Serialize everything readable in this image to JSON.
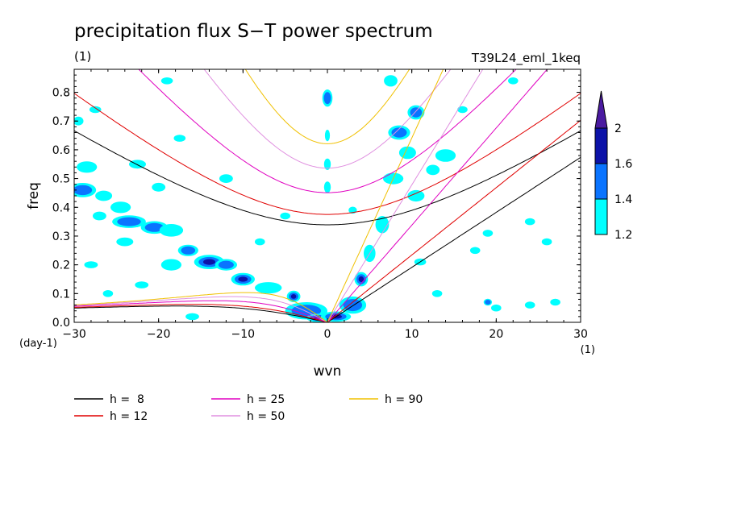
{
  "chart_data": {
    "type": "contour",
    "title": "precipitation flux S−T power spectrum",
    "subtitle_left": "(1)",
    "subtitle_right": "T39L24_eml_1keq",
    "xlabel": "wvn",
    "ylabel": "freq",
    "x_unit": "(1)",
    "y_unit": "(day-1)",
    "xlim": [
      -30,
      30
    ],
    "ylim": [
      0,
      0.88
    ],
    "x_ticks": [
      {
        "value": -30,
        "label": "−30"
      },
      {
        "value": -20,
        "label": "−20"
      },
      {
        "value": -10,
        "label": "−10"
      },
      {
        "value": 0,
        "label": "0"
      },
      {
        "value": 10,
        "label": "10"
      },
      {
        "value": 20,
        "label": "20"
      },
      {
        "value": 30,
        "label": "30"
      }
    ],
    "y_ticks": [
      {
        "value": 0.0,
        "label": "0.0"
      },
      {
        "value": 0.1,
        "label": "0.1"
      },
      {
        "value": 0.2,
        "label": "0.2"
      },
      {
        "value": 0.3,
        "label": "0.3"
      },
      {
        "value": 0.4,
        "label": "0.4"
      },
      {
        "value": 0.5,
        "label": "0.5"
      },
      {
        "value": 0.6,
        "label": "0.6"
      },
      {
        "value": 0.7,
        "label": "0.7"
      },
      {
        "value": 0.8,
        "label": "0.8"
      }
    ],
    "colorbar": {
      "levels": [
        {
          "value": 1.2,
          "label": "1.2"
        },
        {
          "value": 1.4,
          "label": "1.4"
        },
        {
          "value": 1.6,
          "label": "1.6"
        },
        {
          "value": 2,
          "label": "2"
        }
      ],
      "colors": [
        "#00ffff",
        "#0a74ff",
        "#0c12a8",
        "#4a1aa0"
      ]
    },
    "series": [
      {
        "name": "h =  8",
        "h": 8,
        "color": "#000000"
      },
      {
        "name": "h = 12",
        "h": 12,
        "color": "#e00000"
      },
      {
        "name": "h = 25",
        "h": 25,
        "color": "#e000c0"
      },
      {
        "name": "h = 50",
        "h": 50,
        "color": "#e090e0"
      },
      {
        "name": "h = 90",
        "h": 90,
        "color": "#f0c000"
      }
    ],
    "blobs": [
      {
        "x": -29,
        "y": 0.46,
        "rx": 1.6,
        "ry": 0.025,
        "level": 2
      },
      {
        "x": -26.5,
        "y": 0.44,
        "rx": 1.0,
        "ry": 0.018,
        "level": 1
      },
      {
        "x": -24.5,
        "y": 0.4,
        "rx": 1.2,
        "ry": 0.02,
        "level": 1
      },
      {
        "x": -23.5,
        "y": 0.35,
        "rx": 2.0,
        "ry": 0.022,
        "level": 2
      },
      {
        "x": -27,
        "y": 0.37,
        "rx": 0.8,
        "ry": 0.015,
        "level": 1
      },
      {
        "x": -20.5,
        "y": 0.33,
        "rx": 1.6,
        "ry": 0.022,
        "level": 2
      },
      {
        "x": -18.5,
        "y": 0.32,
        "rx": 1.4,
        "ry": 0.022,
        "level": 1
      },
      {
        "x": -16.5,
        "y": 0.25,
        "rx": 1.2,
        "ry": 0.02,
        "level": 2
      },
      {
        "x": -14,
        "y": 0.21,
        "rx": 1.8,
        "ry": 0.025,
        "level": 3
      },
      {
        "x": -12,
        "y": 0.2,
        "rx": 1.3,
        "ry": 0.02,
        "level": 2
      },
      {
        "x": -10,
        "y": 0.15,
        "rx": 1.4,
        "ry": 0.022,
        "level": 3
      },
      {
        "x": -18.5,
        "y": 0.2,
        "rx": 1.2,
        "ry": 0.02,
        "level": 1
      },
      {
        "x": -7,
        "y": 0.12,
        "rx": 1.6,
        "ry": 0.02,
        "level": 1
      },
      {
        "x": -4,
        "y": 0.09,
        "rx": 0.8,
        "ry": 0.02,
        "level": 3
      },
      {
        "x": -2.5,
        "y": 0.04,
        "rx": 2.5,
        "ry": 0.03,
        "level": 2
      },
      {
        "x": -1,
        "y": 0.015,
        "rx": 1.5,
        "ry": 0.015,
        "level": 3
      },
      {
        "x": 1,
        "y": 0.02,
        "rx": 1.8,
        "ry": 0.018,
        "level": 3
      },
      {
        "x": 3,
        "y": 0.06,
        "rx": 1.6,
        "ry": 0.03,
        "level": 2
      },
      {
        "x": 4,
        "y": 0.15,
        "rx": 0.8,
        "ry": 0.025,
        "level": 3
      },
      {
        "x": 5,
        "y": 0.24,
        "rx": 0.7,
        "ry": 0.03,
        "level": 1
      },
      {
        "x": 6.5,
        "y": 0.34,
        "rx": 0.8,
        "ry": 0.03,
        "level": 1
      },
      {
        "x": 0,
        "y": 0.78,
        "rx": 0.6,
        "ry": 0.03,
        "level": 2
      },
      {
        "x": 0,
        "y": 0.65,
        "rx": 0.3,
        "ry": 0.02,
        "level": 1
      },
      {
        "x": 0,
        "y": 0.55,
        "rx": 0.4,
        "ry": 0.02,
        "level": 1
      },
      {
        "x": 0,
        "y": 0.47,
        "rx": 0.4,
        "ry": 0.02,
        "level": 1
      },
      {
        "x": 8.5,
        "y": 0.66,
        "rx": 1.3,
        "ry": 0.025,
        "level": 2
      },
      {
        "x": 10.5,
        "y": 0.73,
        "rx": 1.0,
        "ry": 0.025,
        "level": 2
      },
      {
        "x": 9.5,
        "y": 0.59,
        "rx": 1.0,
        "ry": 0.022,
        "level": 1
      },
      {
        "x": 7.8,
        "y": 0.5,
        "rx": 1.2,
        "ry": 0.02,
        "level": 1
      },
      {
        "x": 10.5,
        "y": 0.44,
        "rx": 1.0,
        "ry": 0.02,
        "level": 1
      },
      {
        "x": 14,
        "y": 0.58,
        "rx": 1.2,
        "ry": 0.022,
        "level": 1
      },
      {
        "x": 12.5,
        "y": 0.53,
        "rx": 0.8,
        "ry": 0.018,
        "level": 1
      },
      {
        "x": 7.5,
        "y": 0.84,
        "rx": 0.8,
        "ry": 0.02,
        "level": 1
      },
      {
        "x": -28.5,
        "y": 0.54,
        "rx": 1.2,
        "ry": 0.02,
        "level": 1
      },
      {
        "x": -22.5,
        "y": 0.55,
        "rx": 1.0,
        "ry": 0.015,
        "level": 1
      },
      {
        "x": -29.5,
        "y": 0.7,
        "rx": 0.6,
        "ry": 0.015,
        "level": 1
      },
      {
        "x": -27.5,
        "y": 0.74,
        "rx": 0.7,
        "ry": 0.012,
        "level": 1
      },
      {
        "x": -19,
        "y": 0.84,
        "rx": 0.7,
        "ry": 0.012,
        "level": 1
      },
      {
        "x": -17.5,
        "y": 0.64,
        "rx": 0.7,
        "ry": 0.012,
        "level": 1
      },
      {
        "x": -12,
        "y": 0.5,
        "rx": 0.8,
        "ry": 0.015,
        "level": 1
      },
      {
        "x": -20,
        "y": 0.47,
        "rx": 0.8,
        "ry": 0.015,
        "level": 1
      },
      {
        "x": -24,
        "y": 0.28,
        "rx": 1.0,
        "ry": 0.015,
        "level": 1
      },
      {
        "x": 19,
        "y": 0.31,
        "rx": 0.6,
        "ry": 0.012,
        "level": 1
      },
      {
        "x": 24,
        "y": 0.35,
        "rx": 0.6,
        "ry": 0.012,
        "level": 1
      },
      {
        "x": 26,
        "y": 0.28,
        "rx": 0.6,
        "ry": 0.012,
        "level": 1
      },
      {
        "x": 17.5,
        "y": 0.25,
        "rx": 0.6,
        "ry": 0.012,
        "level": 1
      },
      {
        "x": 20,
        "y": 0.05,
        "rx": 0.6,
        "ry": 0.012,
        "level": 1
      },
      {
        "x": 24,
        "y": 0.06,
        "rx": 0.6,
        "ry": 0.012,
        "level": 1
      },
      {
        "x": 27,
        "y": 0.07,
        "rx": 0.6,
        "ry": 0.012,
        "level": 1
      },
      {
        "x": 19,
        "y": 0.07,
        "rx": 0.5,
        "ry": 0.012,
        "level": 2
      },
      {
        "x": 16,
        "y": 0.74,
        "rx": 0.6,
        "ry": 0.012,
        "level": 1
      },
      {
        "x": 22,
        "y": 0.84,
        "rx": 0.6,
        "ry": 0.012,
        "level": 1
      },
      {
        "x": -16,
        "y": 0.02,
        "rx": 0.8,
        "ry": 0.012,
        "level": 1
      },
      {
        "x": -22,
        "y": 0.13,
        "rx": 0.8,
        "ry": 0.012,
        "level": 1
      },
      {
        "x": -28,
        "y": 0.2,
        "rx": 0.8,
        "ry": 0.012,
        "level": 1
      },
      {
        "x": -26,
        "y": 0.1,
        "rx": 0.6,
        "ry": 0.012,
        "level": 1
      },
      {
        "x": -8,
        "y": 0.28,
        "rx": 0.6,
        "ry": 0.012,
        "level": 1
      },
      {
        "x": -5,
        "y": 0.37,
        "rx": 0.6,
        "ry": 0.012,
        "level": 1
      },
      {
        "x": 13,
        "y": 0.1,
        "rx": 0.6,
        "ry": 0.012,
        "level": 1
      },
      {
        "x": 11,
        "y": 0.21,
        "rx": 0.7,
        "ry": 0.012,
        "level": 1
      },
      {
        "x": 3,
        "y": 0.39,
        "rx": 0.5,
        "ry": 0.012,
        "level": 1
      }
    ]
  }
}
